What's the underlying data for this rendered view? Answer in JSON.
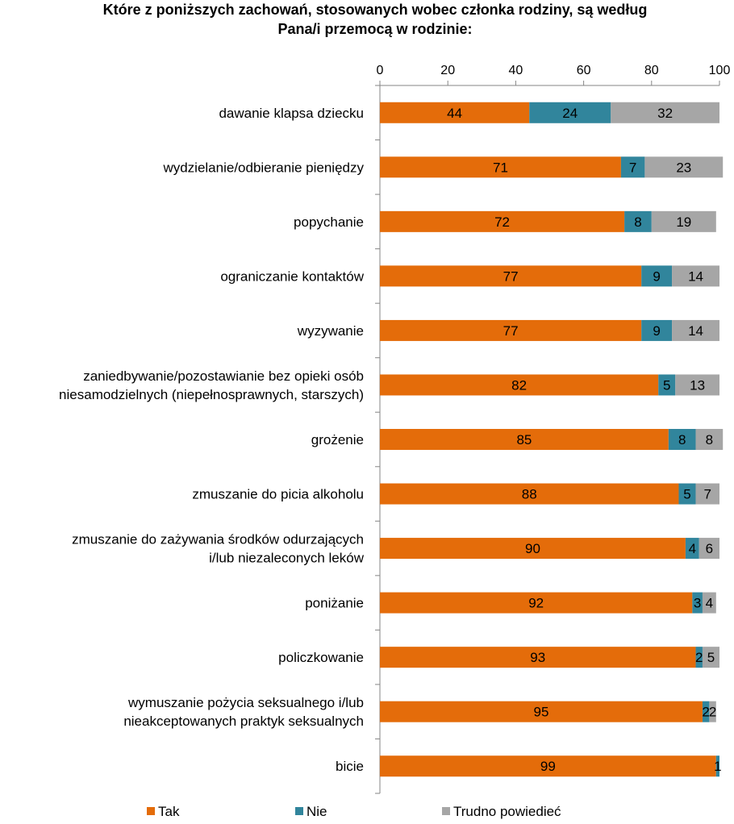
{
  "chart_data": {
    "type": "bar",
    "orientation": "horizontal",
    "stacked": true,
    "title_lines": [
      "Które z poniższych zachowań, stosowanych wobec członka rodziny, są według",
      "Pana/i przemocą w rodzinie:"
    ],
    "xlim": [
      0,
      100
    ],
    "x_ticks": [
      "0",
      "20",
      "40",
      "60",
      "80",
      "100"
    ],
    "x_axis_position": "top",
    "grid": false,
    "legend_position": "bottom",
    "categories": [
      [
        "dawanie klapsa dziecku"
      ],
      [
        "wydzielanie/odbieranie pieniędzy"
      ],
      [
        "popychanie"
      ],
      [
        "ograniczanie kontaktów"
      ],
      [
        "wyzywanie"
      ],
      [
        "zaniedbywanie/pozostawianie bez opieki osób",
        "niesamodzielnych (niepełnosprawnych, starszych)"
      ],
      [
        "grożenie"
      ],
      [
        "zmuszanie do picia alkoholu"
      ],
      [
        "zmuszanie do zażywania środków odurzających",
        "i/lub niezaleconych leków"
      ],
      [
        "poniżanie"
      ],
      [
        "policzkowanie"
      ],
      [
        "wymuszanie pożycia seksualnego i/lub",
        "nieakceptowanych praktyk seksualnych"
      ],
      [
        "bicie"
      ]
    ],
    "series": [
      {
        "name": "Tak",
        "color": "#E46C0A",
        "values": [
          44,
          71,
          72,
          77,
          77,
          82,
          85,
          88,
          90,
          92,
          93,
          95,
          99
        ]
      },
      {
        "name": "Nie",
        "color": "#31859C",
        "values": [
          24,
          7,
          8,
          9,
          9,
          5,
          8,
          5,
          4,
          3,
          2,
          2,
          1
        ]
      },
      {
        "name": "Trudno powiedieć",
        "color": "#A6A6A6",
        "values": [
          32,
          23,
          19,
          14,
          14,
          13,
          8,
          7,
          6,
          4,
          5,
          2,
          0
        ]
      }
    ],
    "data_labels": [
      [
        "44",
        "24",
        "32"
      ],
      [
        "71",
        "7",
        "23"
      ],
      [
        "72",
        "8",
        "19"
      ],
      [
        "77",
        "9",
        "14"
      ],
      [
        "77",
        "9",
        "14"
      ],
      [
        "82",
        "5",
        "13"
      ],
      [
        "85",
        "8",
        "8"
      ],
      [
        "88",
        "5",
        "7"
      ],
      [
        "90",
        "4",
        "6"
      ],
      [
        "92",
        "3",
        "4"
      ],
      [
        "93",
        "2",
        "5"
      ],
      [
        "95",
        "2",
        "2"
      ],
      [
        "99",
        "1",
        ""
      ]
    ]
  }
}
